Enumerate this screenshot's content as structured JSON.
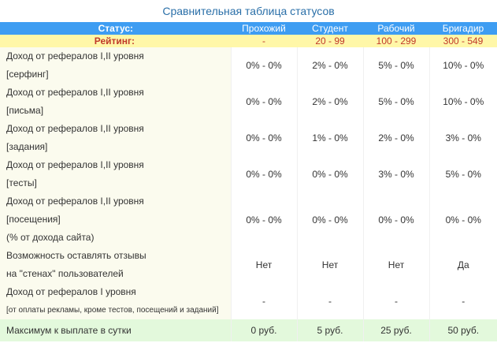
{
  "title": "Сравнительная таблица статусов",
  "header": {
    "status_label": "Статус:",
    "statuses": [
      "Прохожий",
      "Студент",
      "Рабочий",
      "Бригадир"
    ],
    "rating_label": "Рейтинг:",
    "ratings": [
      "-",
      "20 - 99",
      "100 - 299",
      "300 - 549"
    ]
  },
  "rows": [
    {
      "lines": [
        "Доход от рефералов I,II уровня",
        "[серфинг]"
      ],
      "values": [
        "0% - 0%",
        "2% - 0%",
        "5% - 0%",
        "10% - 0%"
      ]
    },
    {
      "lines": [
        "Доход от рефералов I,II уровня",
        "[письма]"
      ],
      "values": [
        "0% - 0%",
        "2% - 0%",
        "5% - 0%",
        "10% - 0%"
      ]
    },
    {
      "lines": [
        "Доход от рефералов I,II уровня",
        "[задания]"
      ],
      "values": [
        "0% - 0%",
        "1% - 0%",
        "2% - 0%",
        "3% - 0%"
      ]
    },
    {
      "lines": [
        "Доход от рефералов I,II уровня",
        "[тесты]"
      ],
      "values": [
        "0% - 0%",
        "0% - 0%",
        "3% - 0%",
        "5% - 0%"
      ]
    },
    {
      "lines": [
        "Доход от рефералов I,II уровня",
        "[посещения]",
        "(% от дохода сайта)"
      ],
      "values": [
        "0% - 0%",
        "0% - 0%",
        "0% - 0%",
        "0% - 0%"
      ]
    },
    {
      "lines": [
        "Возможность оставлять отзывы",
        "на \"стенах\" пользователей"
      ],
      "values": [
        "Нет",
        "Нет",
        "Нет",
        "Да"
      ]
    },
    {
      "lines": [
        "Доход от рефералов I уровня"
      ],
      "small": "[от оплаты рекламы, кроме тестов, посещений и заданий]",
      "values": [
        "-",
        "-",
        "-",
        "-"
      ]
    }
  ],
  "max_row": {
    "label": "Максимум к выплате в сутки",
    "values": [
      "0 руб.",
      "5 руб.",
      "25 руб.",
      "50 руб."
    ]
  }
}
